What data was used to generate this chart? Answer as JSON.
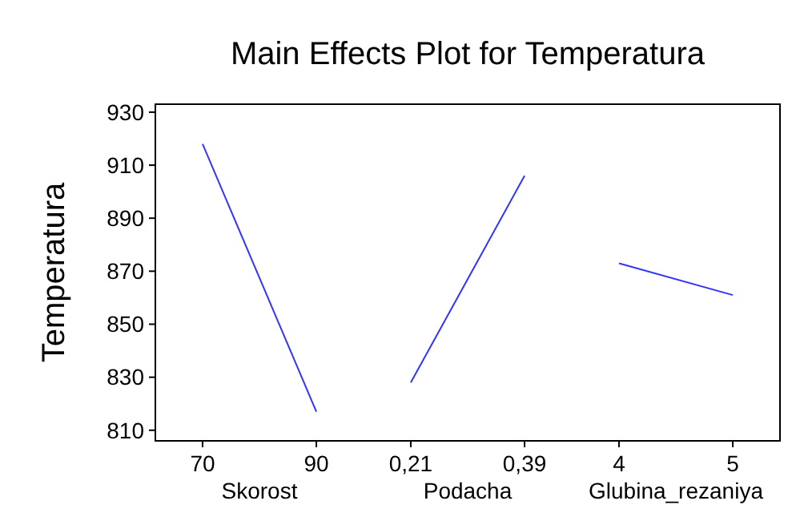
{
  "chart_data": [
    {
      "type": "line",
      "title": "Main Effects Plot for Temperatura",
      "ylabel": "Temperatura",
      "xlabel": "Skorost",
      "categories": [
        "70",
        "90"
      ],
      "series": [
        {
          "color": "#3333ff",
          "values": [
            918,
            817
          ]
        }
      ],
      "ylim": [
        806,
        933
      ],
      "yticks": [
        810,
        830,
        850,
        870,
        890,
        910,
        930
      ]
    },
    {
      "type": "line",
      "xlabel": "Podacha",
      "categories": [
        "0,21",
        "0,39"
      ],
      "series": [
        {
          "color": "#3333ff",
          "values": [
            828,
            906
          ]
        }
      ],
      "ylim": [
        806,
        933
      ],
      "tick_labels": "x"
    },
    {
      "type": "line",
      "xlabel": "Glubina_rezaniya",
      "categories": [
        "4",
        "5"
      ],
      "series": [
        {
          "color": "#3333ff",
          "values": [
            873,
            861
          ]
        }
      ],
      "ylim": [
        806,
        933
      ],
      "tick_labels": "x"
    }
  ]
}
